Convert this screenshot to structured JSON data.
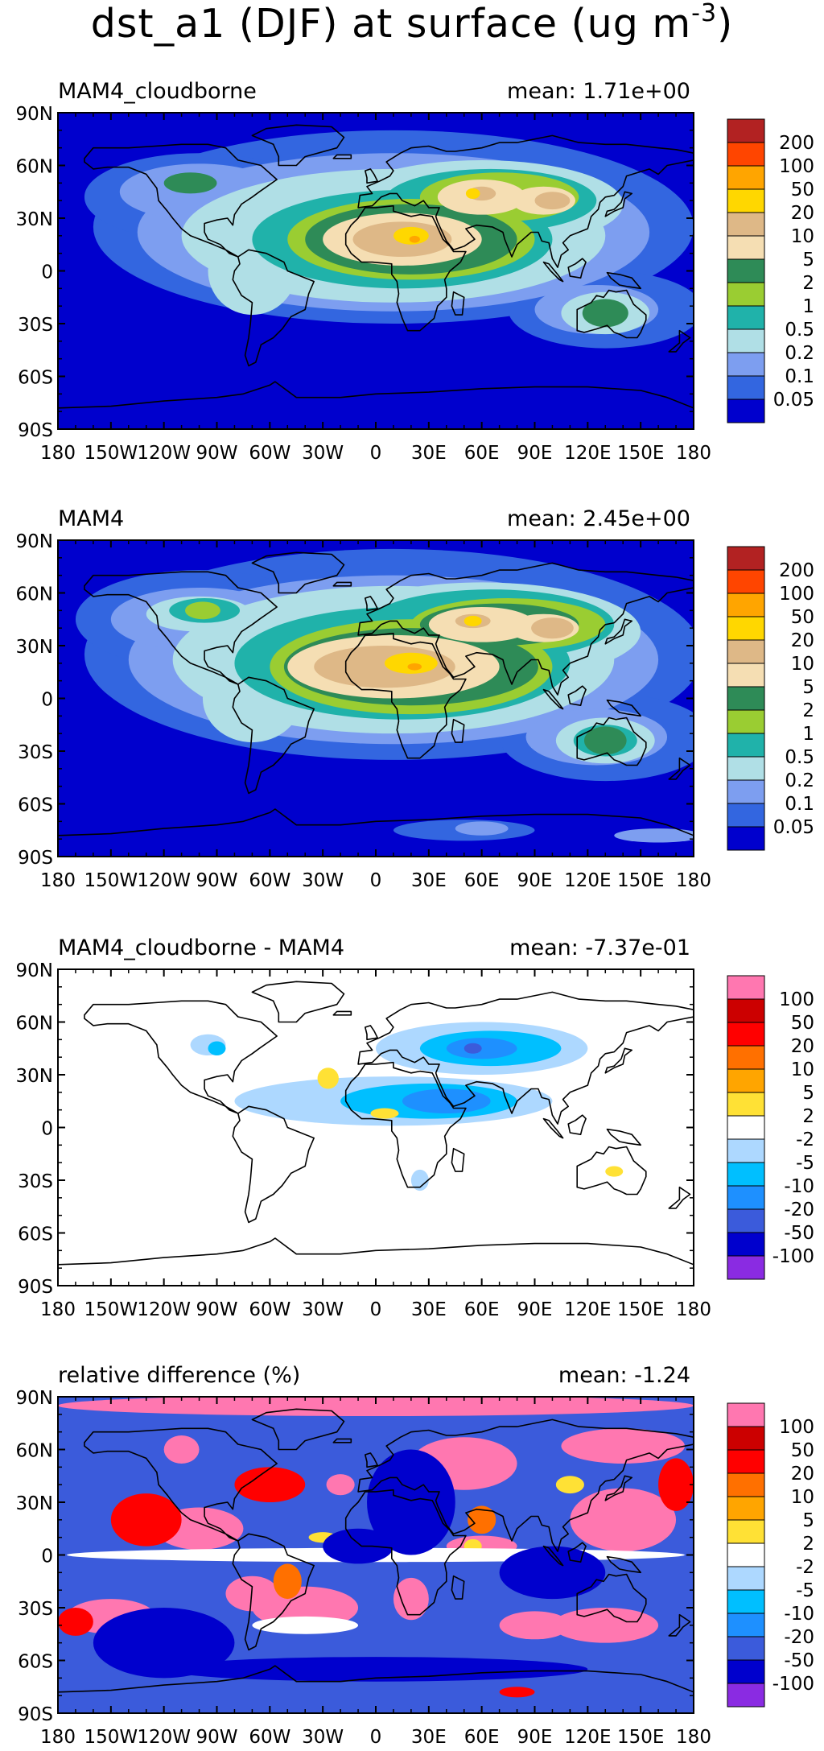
{
  "title": {
    "prefix": "dst_a1 (DJF) at surface (ug m",
    "exponent": "-3",
    "suffix": ")"
  },
  "axes": {
    "lat_ticks": [
      "90N",
      "60N",
      "30N",
      "0",
      "30S",
      "60S",
      "90S"
    ],
    "lon_ticks": [
      "180",
      "150W",
      "120W",
      "90W",
      "60W",
      "30W",
      "0",
      "30E",
      "60E",
      "90E",
      "120E",
      "150E",
      "180"
    ]
  },
  "colorbars": {
    "concentration": {
      "colors": [
        "#0000cd",
        "#3366e0",
        "#7d9ef0",
        "#b0dfe6",
        "#20b2aa",
        "#9acd32",
        "#2e8b57",
        "#f5deb3",
        "#deb887",
        "#ffd700",
        "#ffa500",
        "#ff4500",
        "#b22222"
      ],
      "labels": [
        "0.05",
        "0.1",
        "0.2",
        "0.5",
        "1",
        "2",
        "5",
        "10",
        "20",
        "50",
        "100",
        "200"
      ]
    },
    "difference": {
      "colors": [
        "#8a2be2",
        "#0000cd",
        "#3b5bdb",
        "#1e90ff",
        "#00bfff",
        "#add8ff",
        "#ffffff",
        "#ffe135",
        "#ffa500",
        "#ff7000",
        "#ff0000",
        "#cc0000",
        "#ff77b0"
      ],
      "labels": [
        "-100",
        "-50",
        "-20",
        "-10",
        "-5",
        "-2",
        "2",
        "5",
        "10",
        "20",
        "50",
        "100"
      ]
    }
  },
  "panels": [
    {
      "left_label": "MAM4_cloudborne",
      "right_label": "mean: 1.71e+00",
      "colorbar": "concentration",
      "background": "#0000cd"
    },
    {
      "left_label": "MAM4",
      "right_label": "mean: 2.45e+00",
      "colorbar": "concentration",
      "background": "#0000cd"
    },
    {
      "left_label": "MAM4_cloudborne - MAM4",
      "right_label": "mean: -7.37e-01",
      "colorbar": "difference",
      "background": "#ffffff"
    },
    {
      "left_label": "relative difference (%)",
      "right_label": "mean: -1.24",
      "colorbar": "difference",
      "background": "#3b5bdb"
    }
  ]
}
